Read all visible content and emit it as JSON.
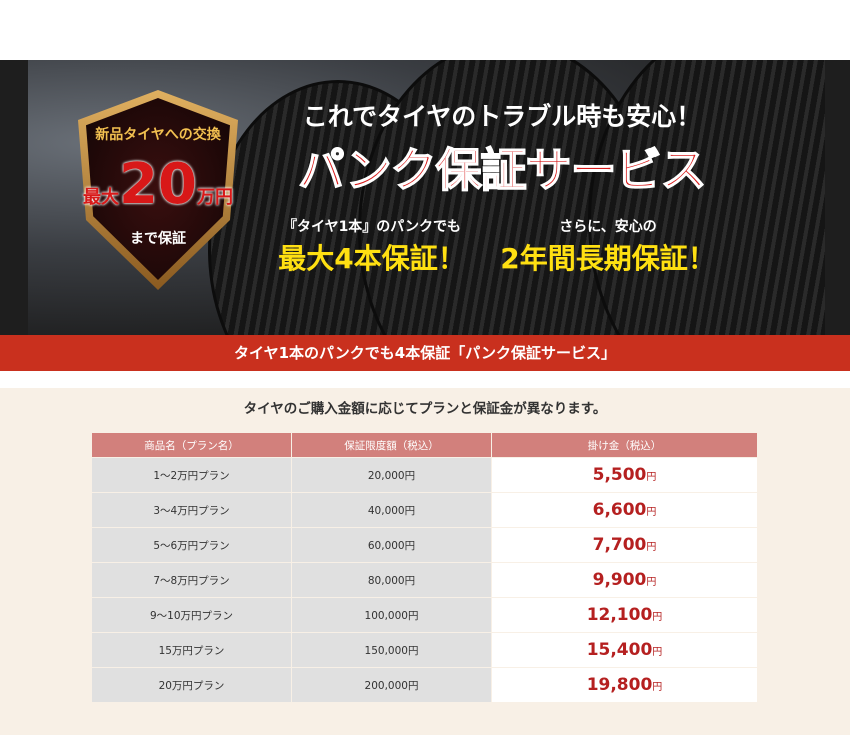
{
  "banner": {
    "badge_top": "新品タイヤへの交換",
    "badge_prefix": "最大",
    "badge_amount": "20",
    "badge_unit": "万円",
    "badge_bottom": "まで保証",
    "headline": "これでタイヤのトラブル時も安心！",
    "title": "パンク保証サービス",
    "point1_sub": "『タイヤ1本』のパンクでも",
    "point1_main": "最大4本保証！",
    "point2_sub": "さらに、安心の",
    "point2_main": "2年間長期保証！"
  },
  "red_bar": "タイヤ1本のパンクでも4本保証「パンク保証サービス」",
  "lead": "タイヤのご購入金額に応じてプランと保証金が異なります。",
  "table": {
    "headers": [
      "商品名（プラン名）",
      "保証限度額（税込）",
      "掛け金（税込）"
    ],
    "currency": "円",
    "rows": [
      {
        "plan": "1〜2万円プラン",
        "limit": "20,000円",
        "fee": "5,500"
      },
      {
        "plan": "3〜4万円プラン",
        "limit": "40,000円",
        "fee": "6,600"
      },
      {
        "plan": "5〜6万円プラン",
        "limit": "60,000円",
        "fee": "7,700"
      },
      {
        "plan": "7〜8万円プラン",
        "limit": "80,000円",
        "fee": "9,900"
      },
      {
        "plan": "9〜10万円プラン",
        "limit": "100,000円",
        "fee": "12,100"
      },
      {
        "plan": "15万円プラン",
        "limit": "150,000円",
        "fee": "15,400"
      },
      {
        "plan": "20万円プラン",
        "limit": "200,000円",
        "fee": "19,800"
      }
    ]
  },
  "colors": {
    "accent_red": "#c9301e",
    "header_pink": "#d2807c",
    "price_red": "#b52020",
    "cream": "#f8f0e6"
  }
}
